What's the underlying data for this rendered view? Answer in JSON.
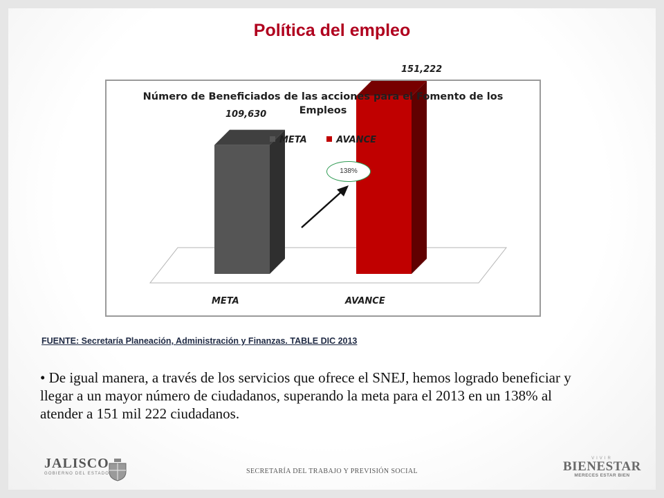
{
  "page": {
    "title": "Política del empleo",
    "source": "FUENTE: Secretaría Planeación, Administración y Finanzas. TABLE DIC 2013",
    "body_text": "• De igual manera, a través de los servicios que ofrece el SNEJ, hemos logrado beneficiar y llegar a un mayor número de ciudadanos, superando la meta para el 2013 en un 138% al atender a 151 mil 222 ciudadanos.",
    "footer": "SECRETARÍA DEL TRABAJO Y PREVISIÓN SOCIAL"
  },
  "logos": {
    "jalisco": {
      "word": "JALISCO",
      "sub": "GOBIERNO DEL ESTADO"
    },
    "bienestar": {
      "top": "VIVIR",
      "word": "BIENESTAR",
      "sub": "MERECES ESTAR BIEN"
    }
  },
  "chart_data": {
    "type": "bar",
    "title_line1": "Número de Beneficiados de las acciones para el Fomento de los",
    "title_line2": "Empleos",
    "categories": [
      "META",
      "AVANCE"
    ],
    "series": [
      {
        "name": "META",
        "value": 109630,
        "label": "109,630",
        "color": "#555555"
      },
      {
        "name": "AVANCE",
        "value": 151222,
        "label": "151,222",
        "color": "#c00000"
      }
    ],
    "annotation": "138%",
    "ylim": [
      0,
      160000
    ],
    "grid": false,
    "legend_position": "top"
  }
}
